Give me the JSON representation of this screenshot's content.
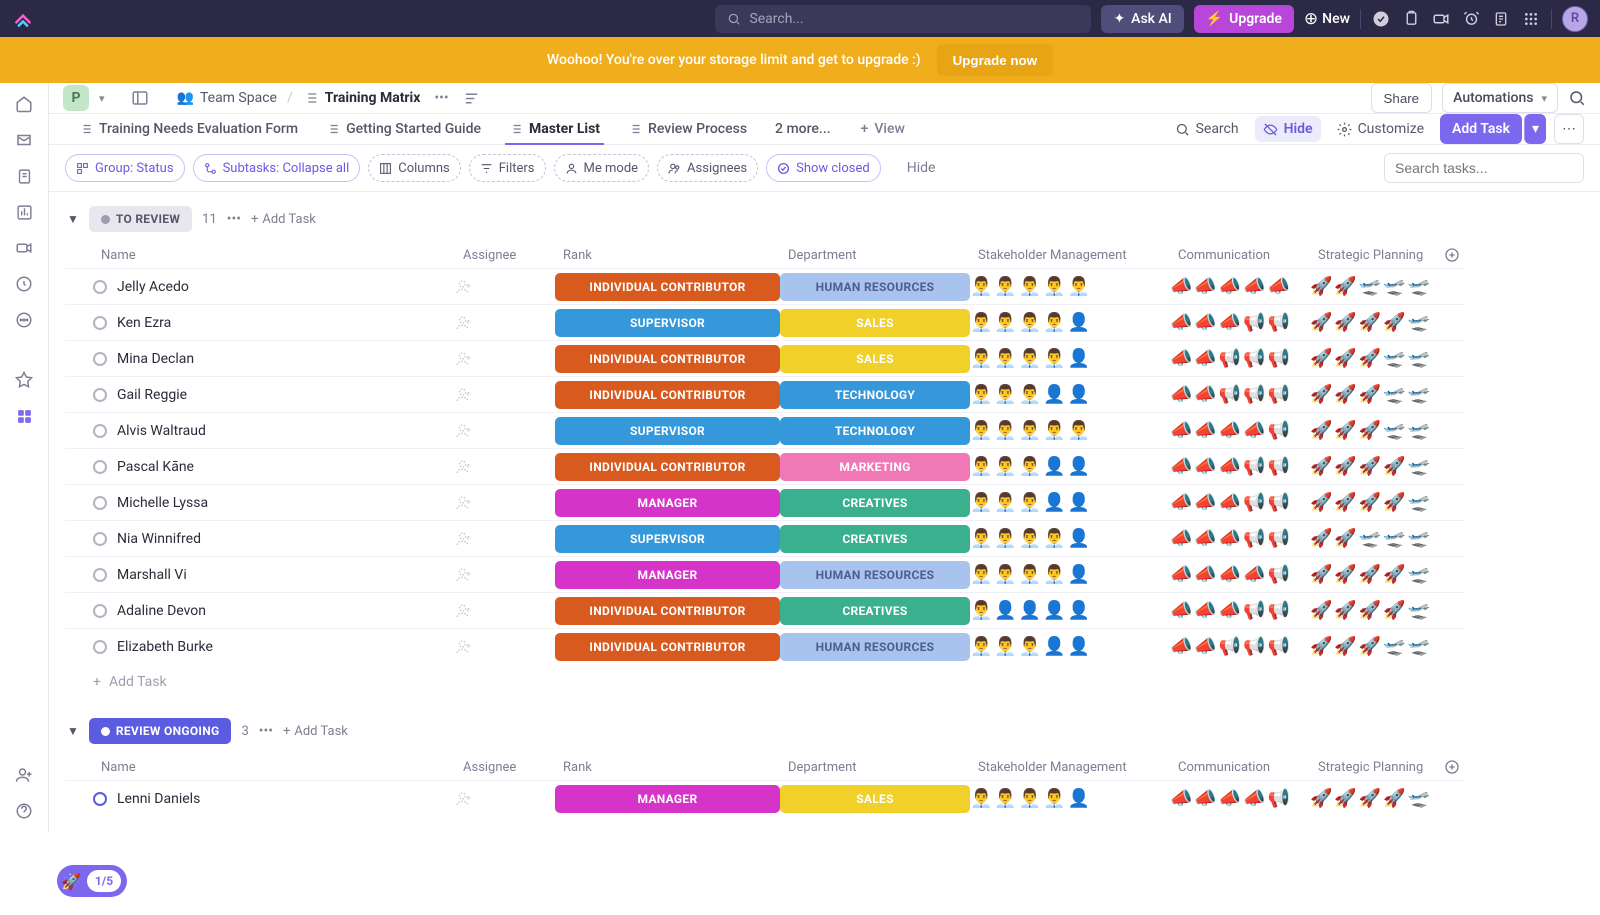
{
  "topbar": {
    "search_placeholder": "Search...",
    "ask_ai": "Ask AI",
    "upgrade": "Upgrade",
    "new": "New",
    "avatar_initial": "R"
  },
  "banner": {
    "text": "Woohoo! You're over your storage limit and get to upgrade :)",
    "button": "Upgrade now"
  },
  "breadcrumb": {
    "workspace_initial": "P",
    "space": "Team Space",
    "list_name": "Training Matrix",
    "share": "Share",
    "automations": "Automations"
  },
  "tabs": {
    "items": [
      "Training Needs Evaluation Form",
      "Getting Started Guide",
      "Master List",
      "Review Process",
      "2 more..."
    ],
    "active_index": 2,
    "view": "View",
    "search": "Search",
    "hide": "Hide",
    "customize": "Customize",
    "add_task": "Add Task"
  },
  "filters": {
    "group": "Group: Status",
    "subtasks": "Subtasks: Collapse all",
    "columns": "Columns",
    "filters": "Filters",
    "me_mode": "Me mode",
    "assignees": "Assignees",
    "show_closed": "Show closed",
    "hide": "Hide",
    "search_placeholder": "Search tasks..."
  },
  "columns": {
    "name": "Name",
    "assignee": "Assignee",
    "rank": "Rank",
    "department": "Department",
    "stakeholder": "Stakeholder Management",
    "communication": "Communication",
    "strategic": "Strategic Planning"
  },
  "rank_colors": {
    "INDIVIDUAL CONTRIBUTOR": "#d85a1e",
    "SUPERVISOR": "#3498db",
    "MANAGER": "#d633c9"
  },
  "dept_colors": {
    "HUMAN RESOURCES": "#a9c3ef",
    "SALES": "#f1d02a",
    "TECHNOLOGY": "#3498db",
    "MARKETING": "#f178b6",
    "CREATIVES": "#3bb08f"
  },
  "status_styles": {
    "TO REVIEW": {
      "bg": "#e8e7ee",
      "text": "#56566b",
      "dot": "#9c9bb0"
    },
    "REVIEW ONGOING": {
      "bg": "#5c5ce0",
      "text": "#ffffff",
      "dot": "#ffffff"
    }
  },
  "groups": [
    {
      "status": "TO REVIEW",
      "count": 11,
      "add_task": "Add Task",
      "rows": [
        {
          "name": "Jelly Acedo",
          "rank": "INDIVIDUAL CONTRIBUTOR",
          "dept": "HUMAN RESOURCES",
          "stake": 5,
          "comm": 5,
          "strat": 2
        },
        {
          "name": "Ken Ezra",
          "rank": "SUPERVISOR",
          "dept": "SALES",
          "stake": 4,
          "comm": 3,
          "strat": 4
        },
        {
          "name": "Mina Declan",
          "rank": "INDIVIDUAL CONTRIBUTOR",
          "dept": "SALES",
          "stake": 4,
          "comm": 2,
          "strat": 3
        },
        {
          "name": "Gail Reggie",
          "rank": "INDIVIDUAL CONTRIBUTOR",
          "dept": "TECHNOLOGY",
          "stake": 3,
          "comm": 2,
          "strat": 3
        },
        {
          "name": "Alvis Waltraud",
          "rank": "SUPERVISOR",
          "dept": "TECHNOLOGY",
          "stake": 5,
          "comm": 4,
          "strat": 3
        },
        {
          "name": "Pascal Kāne",
          "rank": "INDIVIDUAL CONTRIBUTOR",
          "dept": "MARKETING",
          "stake": 3,
          "comm": 3,
          "strat": 4
        },
        {
          "name": "Michelle Lyssa",
          "rank": "MANAGER",
          "dept": "CREATIVES",
          "stake": 3,
          "comm": 3,
          "strat": 4
        },
        {
          "name": "Nia Winnifred",
          "rank": "SUPERVISOR",
          "dept": "CREATIVES",
          "stake": 4,
          "comm": 3,
          "strat": 2
        },
        {
          "name": "Marshall Vi",
          "rank": "MANAGER",
          "dept": "HUMAN RESOURCES",
          "stake": 4,
          "comm": 4,
          "strat": 4
        },
        {
          "name": "Adaline Devon",
          "rank": "INDIVIDUAL CONTRIBUTOR",
          "dept": "CREATIVES",
          "stake": 1,
          "comm": 3,
          "strat": 4
        },
        {
          "name": "Elizabeth Burke",
          "rank": "INDIVIDUAL CONTRIBUTOR",
          "dept": "HUMAN RESOURCES",
          "stake": 3,
          "comm": 2,
          "strat": 3
        }
      ],
      "bottom_add": "Add Task"
    },
    {
      "status": "REVIEW ONGOING",
      "count": 3,
      "add_task": "Add Task",
      "rows": [
        {
          "name": "Lenni Daniels",
          "rank": "MANAGER",
          "dept": "SALES",
          "stake": 4,
          "comm": 4,
          "strat": 4
        }
      ]
    }
  ],
  "onboard": {
    "count": "1/5"
  }
}
